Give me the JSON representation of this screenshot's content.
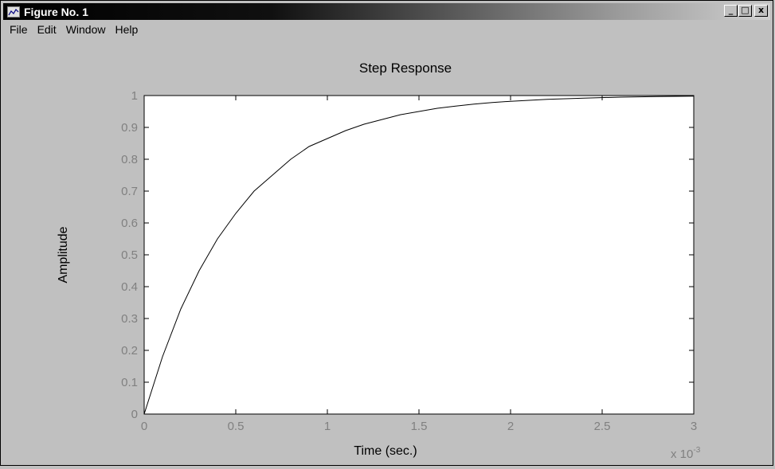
{
  "window": {
    "title": "Figure No. 1",
    "buttons": {
      "minimize": "_",
      "maximize": "□",
      "close": "x"
    }
  },
  "menu": {
    "items": [
      {
        "label": "File"
      },
      {
        "label": "Edit"
      },
      {
        "label": "Window"
      },
      {
        "label": "Help"
      }
    ]
  },
  "chart_data": {
    "type": "line",
    "title": "Step Response",
    "xlabel": "Time (sec.)",
    "ylabel": "Amplitude",
    "x_multiplier_label": "x 10",
    "x_multiplier_exponent": "-3",
    "xlim": [
      0,
      3
    ],
    "ylim": [
      0,
      1
    ],
    "xticks": [
      "0",
      "0.5",
      "1",
      "1.5",
      "2",
      "2.5",
      "3"
    ],
    "yticks": [
      "0",
      "0.1",
      "0.2",
      "0.3",
      "0.4",
      "0.5",
      "0.6",
      "0.7",
      "0.8",
      "0.9",
      "1"
    ],
    "reference_line": {
      "y": 1,
      "style": "dashed"
    },
    "series": [
      {
        "x": [
          0,
          0.1,
          0.2,
          0.3,
          0.4,
          0.5,
          0.6,
          0.7,
          0.8,
          0.9,
          1.0,
          1.1,
          1.2,
          1.3,
          1.4,
          1.5,
          1.6,
          1.7,
          1.8,
          1.9,
          2.0,
          2.2,
          2.4,
          2.6,
          2.8,
          3.0
        ],
        "values": [
          0,
          0.18,
          0.33,
          0.45,
          0.55,
          0.63,
          0.7,
          0.75,
          0.8,
          0.84,
          0.865,
          0.89,
          0.91,
          0.925,
          0.94,
          0.95,
          0.96,
          0.967,
          0.973,
          0.978,
          0.982,
          0.988,
          0.992,
          0.995,
          0.997,
          0.998
        ]
      }
    ]
  }
}
